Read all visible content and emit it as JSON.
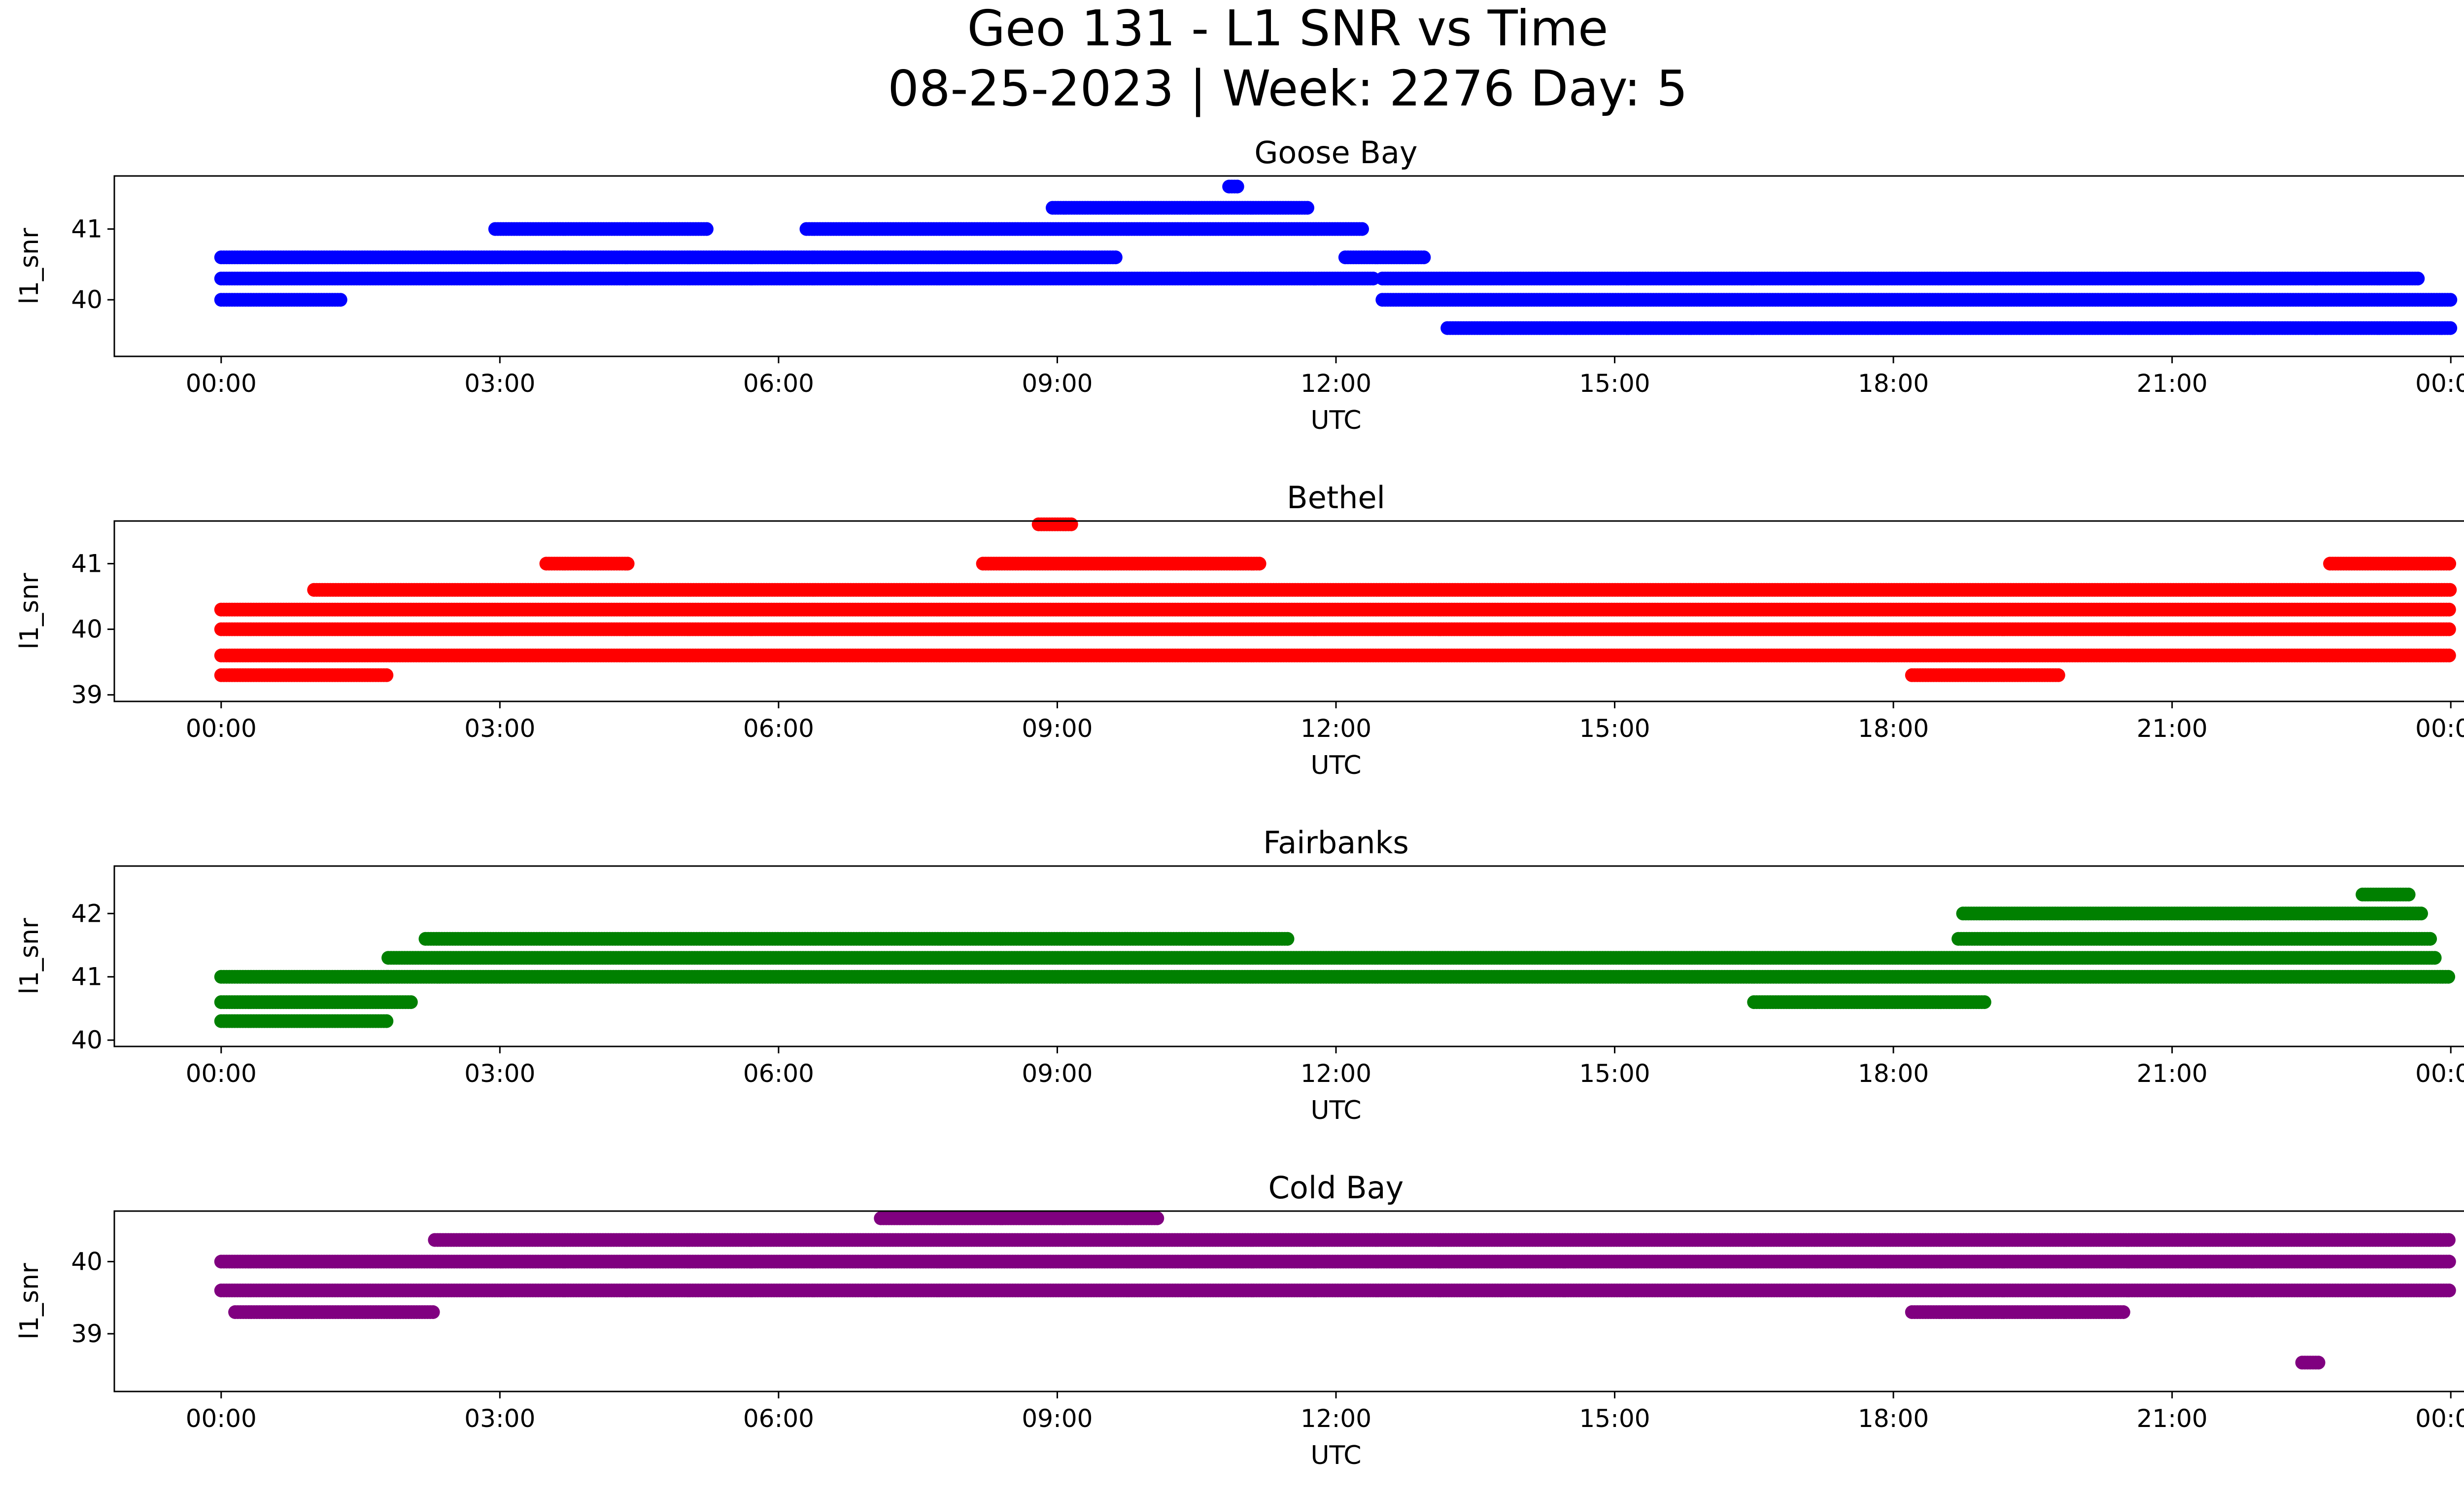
{
  "figure": {
    "title_line1": "Geo 131 - L1 SNR vs Time",
    "title_line2": "08-25-2023 | Week: 2276 Day: 5"
  },
  "chart_data": [
    {
      "type": "scatter",
      "title": "Goose Bay",
      "xlabel": "UTC",
      "ylabel": "l1_snr",
      "color": "#0000ff",
      "x_ticks": [
        "00:00",
        "03:00",
        "06:00",
        "09:00",
        "12:00",
        "15:00",
        "18:00",
        "21:00",
        "00:00"
      ],
      "y_ticks": [
        40,
        41
      ],
      "ylim": [
        39.2,
        41.75
      ],
      "xlim_hours": [
        -1.15,
        25.15
      ],
      "series": [
        {
          "x_range_hours": [
            0.0,
            12.4
          ],
          "y": 40.3
        },
        {
          "x_range_hours": [
            0.0,
            9.65
          ],
          "y": 40.6
        },
        {
          "x_range_hours": [
            6.3,
            12.3
          ],
          "y": 41.0
        },
        {
          "x_range_hours": [
            8.95,
            11.7
          ],
          "y": 41.3
        },
        {
          "x_range_hours": [
            12.5,
            23.65
          ],
          "y": 40.3
        },
        {
          "x_range_hours": [
            12.5,
            24.0
          ],
          "y": 40.0
        },
        {
          "x_range_hours": [
            13.2,
            24.0
          ],
          "y": 39.6
        },
        {
          "x_range_hours": [
            0.0,
            1.3
          ],
          "y": 40.0
        },
        {
          "x_range_hours": [
            2.95,
            5.25
          ],
          "y": 41.0
        },
        {
          "x_range_hours": [
            12.1,
            12.95
          ],
          "y": 40.6
        },
        {
          "x_range_hours": [
            10.85,
            10.95
          ],
          "y": 41.6
        }
      ]
    },
    {
      "type": "scatter",
      "title": "Bethel",
      "xlabel": "UTC",
      "ylabel": "l1_snr",
      "color": "#ff0000",
      "x_ticks": [
        "00:00",
        "03:00",
        "06:00",
        "09:00",
        "12:00",
        "15:00",
        "18:00",
        "21:00",
        "00:00"
      ],
      "y_ticks": [
        39,
        40,
        41
      ],
      "ylim": [
        38.9,
        41.65
      ],
      "xlim_hours": [
        -1.15,
        25.15
      ],
      "series": [
        {
          "x_range_hours": [
            0.0,
            24.0
          ],
          "y": 40.0
        },
        {
          "x_range_hours": [
            0.0,
            24.0
          ],
          "y": 40.3
        },
        {
          "x_range_hours": [
            1.0,
            24.0
          ],
          "y": 40.6
        },
        {
          "x_range_hours": [
            0.0,
            24.0
          ],
          "y": 39.6
        },
        {
          "x_range_hours": [
            0.0,
            1.8
          ],
          "y": 39.3
        },
        {
          "x_range_hours": [
            8.2,
            11.2
          ],
          "y": 41.0
        },
        {
          "x_range_hours": [
            3.5,
            4.4
          ],
          "y": 41.0
        },
        {
          "x_range_hours": [
            22.7,
            24.0
          ],
          "y": 41.0
        },
        {
          "x_range_hours": [
            18.2,
            19.8
          ],
          "y": 39.3
        },
        {
          "x_range_hours": [
            8.8,
            9.15
          ],
          "y": 41.6
        }
      ]
    },
    {
      "type": "scatter",
      "title": "Fairbanks",
      "xlabel": "UTC",
      "ylabel": "l1_snr",
      "color": "#008000",
      "x_ticks": [
        "00:00",
        "03:00",
        "06:00",
        "09:00",
        "12:00",
        "15:00",
        "18:00",
        "21:00",
        "00:00"
      ],
      "y_ticks": [
        40,
        41,
        42
      ],
      "ylim": [
        39.9,
        42.75
      ],
      "xlim_hours": [
        -1.15,
        25.15
      ],
      "series": [
        {
          "x_range_hours": [
            0.0,
            1.8
          ],
          "y": 41.0
        },
        {
          "x_range_hours": [
            0.0,
            2.05
          ],
          "y": 40.6
        },
        {
          "x_range_hours": [
            0.0,
            1.8
          ],
          "y": 40.3
        },
        {
          "x_range_hours": [
            1.8,
            23.85
          ],
          "y": 41.3
        },
        {
          "x_range_hours": [
            2.2,
            11.5
          ],
          "y": 41.6
        },
        {
          "x_range_hours": [
            1.8,
            24.0
          ],
          "y": 41.0
        },
        {
          "x_range_hours": [
            16.5,
            19.0
          ],
          "y": 40.6
        },
        {
          "x_range_hours": [
            18.7,
            23.8
          ],
          "y": 41.6
        },
        {
          "x_range_hours": [
            18.75,
            23.7
          ],
          "y": 42.0
        },
        {
          "x_range_hours": [
            23.05,
            23.55
          ],
          "y": 42.3
        }
      ]
    },
    {
      "type": "scatter",
      "title": "Cold Bay",
      "xlabel": "UTC",
      "ylabel": "l1_snr",
      "color": "#800080",
      "x_ticks": [
        "00:00",
        "03:00",
        "06:00",
        "09:00",
        "12:00",
        "15:00",
        "18:00",
        "21:00",
        "00:00"
      ],
      "y_ticks": [
        39,
        40
      ],
      "ylim": [
        38.2,
        40.7
      ],
      "xlim_hours": [
        -1.15,
        25.15
      ],
      "series": [
        {
          "x_range_hours": [
            0.0,
            24.0
          ],
          "y": 40.0
        },
        {
          "x_range_hours": [
            0.0,
            24.0
          ],
          "y": 39.6
        },
        {
          "x_range_hours": [
            2.3,
            24.0
          ],
          "y": 40.3
        },
        {
          "x_range_hours": [
            0.15,
            2.3
          ],
          "y": 39.3
        },
        {
          "x_range_hours": [
            7.1,
            10.1
          ],
          "y": 40.6
        },
        {
          "x_range_hours": [
            18.2,
            20.5
          ],
          "y": 39.3
        },
        {
          "x_range_hours": [
            22.4,
            22.6
          ],
          "y": 38.6
        }
      ]
    }
  ]
}
